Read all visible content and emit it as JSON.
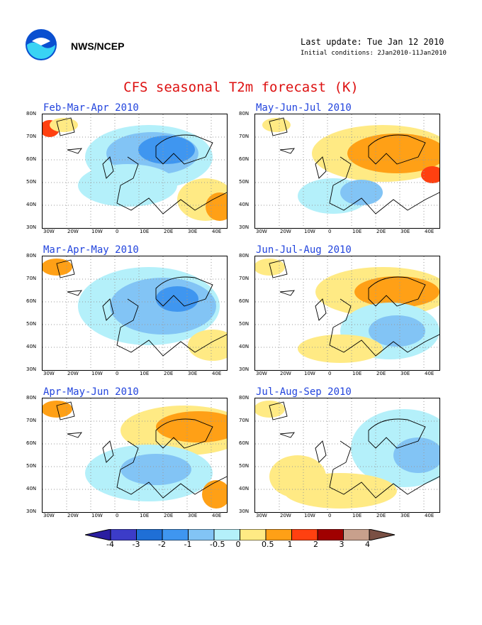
{
  "header": {
    "org": "NWS/NCEP",
    "last_update": "Last update: Tue Jan 12 2010",
    "initial_conditions": "Initial conditions: 2Jan2010-11Jan2010"
  },
  "title": "CFS seasonal T2m forecast (K)",
  "axes": {
    "y_ticks": [
      "80N",
      "70N",
      "60N",
      "50N",
      "40N",
      "30N"
    ],
    "x_ticks": [
      "30W",
      "20W",
      "10W",
      "0",
      "10E",
      "20E",
      "30E",
      "40E"
    ]
  },
  "panels": [
    {
      "season": "Feb-Mar-Apr 2010",
      "pattern": "cold-north"
    },
    {
      "season": "May-Jun-Jul 2010",
      "pattern": "warm-northeast"
    },
    {
      "season": "Mar-Apr-May 2010",
      "pattern": "cold-central"
    },
    {
      "season": "Jun-Jul-Aug 2010",
      "pattern": "warm-north-cool-east"
    },
    {
      "season": "Apr-May-Jun 2010",
      "pattern": "warm-northeast-cool-south"
    },
    {
      "season": "Jul-Aug-Sep 2010",
      "pattern": "cool-east-warm-south"
    }
  ],
  "legend": {
    "labels": [
      "-4",
      "-3",
      "-2",
      "-1",
      "-0.5",
      "0",
      "0.5",
      "1",
      "2",
      "3",
      "4"
    ],
    "colors": [
      "#2a1ea0",
      "#3c3cc8",
      "#1f6fd6",
      "#3f96f0",
      "#82c4f5",
      "#b4f0fa",
      "#ffea84",
      "#ffa016",
      "#ff4010",
      "#a00000",
      "#c8a08c",
      "#7a5044"
    ]
  }
}
